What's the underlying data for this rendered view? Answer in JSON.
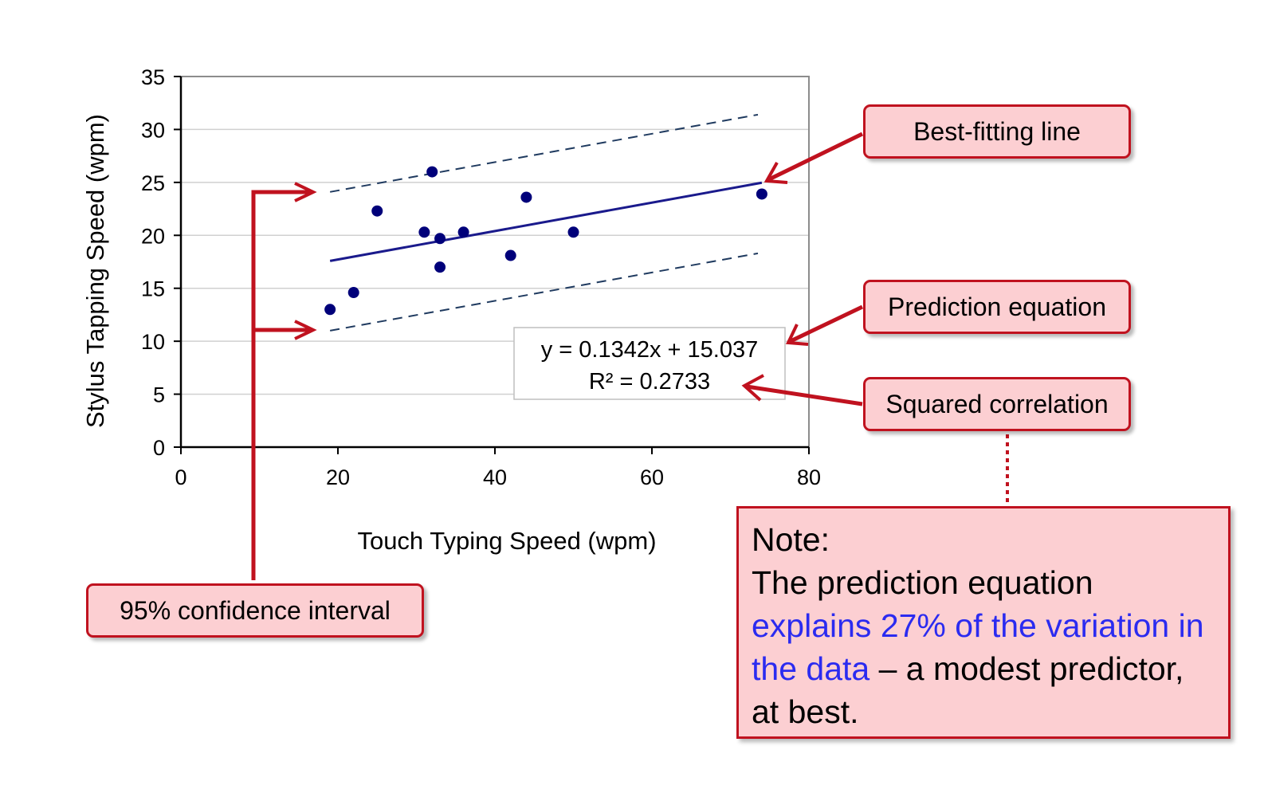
{
  "chart_data": {
    "type": "scatter",
    "xlabel": "Touch Typing Speed (wpm)",
    "ylabel": "Stylus Tapping Speed (wpm)",
    "xlim": [
      0,
      80
    ],
    "ylim": [
      0,
      35
    ],
    "x_ticks": [
      "0",
      "20",
      "40",
      "60",
      "80"
    ],
    "y_ticks": [
      "0",
      "5",
      "10",
      "15",
      "20",
      "25",
      "30",
      "35"
    ],
    "grid": "horizontal",
    "points": [
      {
        "x": 19,
        "y": 13.0
      },
      {
        "x": 22,
        "y": 14.6
      },
      {
        "x": 25,
        "y": 22.3
      },
      {
        "x": 31,
        "y": 20.3
      },
      {
        "x": 32,
        "y": 26.0
      },
      {
        "x": 33,
        "y": 19.7
      },
      {
        "x": 33,
        "y": 17.0
      },
      {
        "x": 36,
        "y": 20.3
      },
      {
        "x": 42,
        "y": 18.1
      },
      {
        "x": 44,
        "y": 23.6
      },
      {
        "x": 50,
        "y": 20.3
      },
      {
        "x": 74,
        "y": 23.9
      }
    ],
    "fit_line": {
      "slope": 0.1342,
      "intercept": 15.037,
      "x_range": [
        19,
        74
      ]
    },
    "confidence_upper": [
      {
        "x": 19,
        "y": 24.1
      },
      {
        "x": 73.5,
        "y": 31.4
      }
    ],
    "confidence_lower": [
      {
        "x": 19,
        "y": 11.0
      },
      {
        "x": 73.5,
        "y": 18.3
      }
    ],
    "equation": "y = 0.1342x + 15.037",
    "r_squared": "R² = 0.2733",
    "colors": {
      "points": "#00007a",
      "fit_line": "#1a1a8c",
      "interval": "#1f3a5f",
      "arrows": "#c0121f"
    }
  },
  "callouts": {
    "best_fit": "Best-fitting line",
    "prediction": "Prediction equation",
    "squared": "Squared correlation",
    "confidence": "95% confidence interval"
  },
  "note": {
    "title": "Note:",
    "line1": "The prediction equation",
    "highlight": "explains 27% of the variation in the data",
    "rest": " – a modest predictor, at best."
  }
}
